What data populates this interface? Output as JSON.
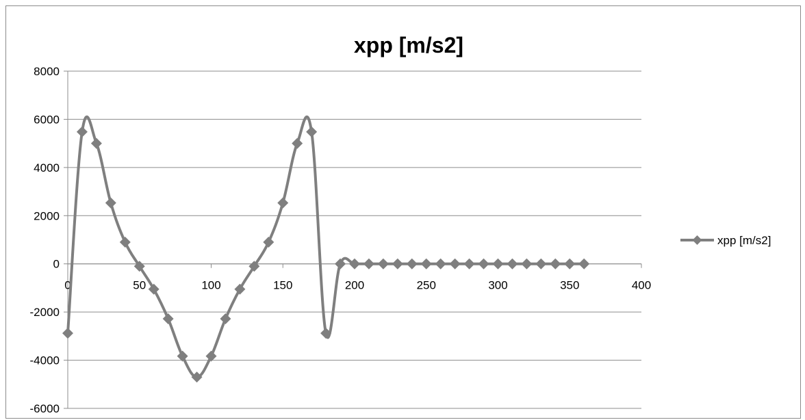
{
  "chart_data": {
    "type": "line",
    "title": "xpp [m/s2]",
    "xlabel": "",
    "ylabel": "",
    "xlim": [
      0,
      400
    ],
    "ylim": [
      -6000,
      8000
    ],
    "x_ticks": [
      0,
      50,
      100,
      150,
      200,
      250,
      300,
      350,
      400
    ],
    "y_ticks": [
      8000,
      6000,
      4000,
      2000,
      0,
      -2000,
      -4000,
      -6000
    ],
    "grid": "horizontal",
    "legend_position": "right",
    "series": [
      {
        "name": "xpp [m/s2]",
        "color": "#7f7f7f",
        "marker": "diamond",
        "smooth": true,
        "x": [
          0,
          10,
          20,
          30,
          40,
          50,
          60,
          70,
          80,
          90,
          100,
          110,
          120,
          130,
          140,
          150,
          160,
          170,
          180,
          190,
          200,
          210,
          220,
          230,
          240,
          250,
          260,
          270,
          280,
          290,
          300,
          310,
          320,
          330,
          340,
          350,
          360
        ],
        "y": [
          -2880,
          5480,
          5000,
          2530,
          900,
          -100,
          -1050,
          -2280,
          -3830,
          -4700,
          -3830,
          -2280,
          -1050,
          -100,
          900,
          2530,
          5000,
          5480,
          -2880,
          0,
          0,
          0,
          0,
          0,
          0,
          0,
          0,
          0,
          0,
          0,
          0,
          0,
          0,
          0,
          0,
          0,
          0
        ]
      }
    ]
  }
}
